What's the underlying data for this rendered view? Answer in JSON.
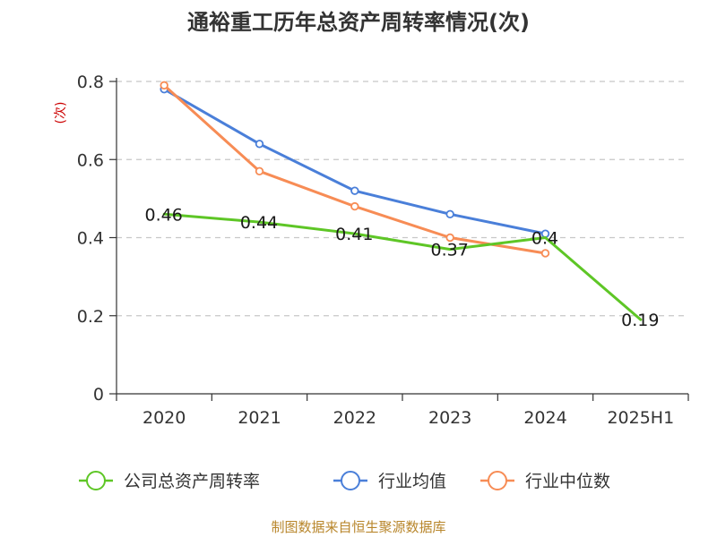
{
  "chart_data": {
    "type": "line",
    "title": "通裕重工历年总资产周转率情况(次)",
    "ylabel": "(次)",
    "xlabel": "",
    "categories": [
      "2020",
      "2021",
      "2022",
      "2023",
      "2024",
      "2025H1"
    ],
    "ylim": [
      0,
      0.8
    ],
    "yticks": [
      "0",
      "0.2",
      "0.4",
      "0.6",
      "0.8"
    ],
    "yticks_values": [
      0,
      0.2,
      0.4,
      0.6,
      0.8
    ],
    "grid": true,
    "legend_position": "bottom",
    "series": [
      {
        "name": "公司总资产周转率",
        "color": "#5ec626",
        "values": [
          0.46,
          0.44,
          0.41,
          0.37,
          0.4,
          0.19
        ],
        "labels": [
          "0.46",
          "0.44",
          "0.41",
          "0.37",
          "0.4",
          "0.19"
        ],
        "show_markers": false,
        "show_labels": true
      },
      {
        "name": "行业均值",
        "color": "#4a7fd9",
        "values": [
          0.78,
          0.64,
          0.52,
          0.46,
          0.41,
          null
        ],
        "show_markers": true,
        "show_labels": false
      },
      {
        "name": "行业中位数",
        "color": "#f78c55",
        "values": [
          0.79,
          0.57,
          0.48,
          0.4,
          0.36,
          null
        ],
        "show_markers": true,
        "show_labels": false
      }
    ]
  },
  "source": "制图数据来自恒生聚源数据库"
}
